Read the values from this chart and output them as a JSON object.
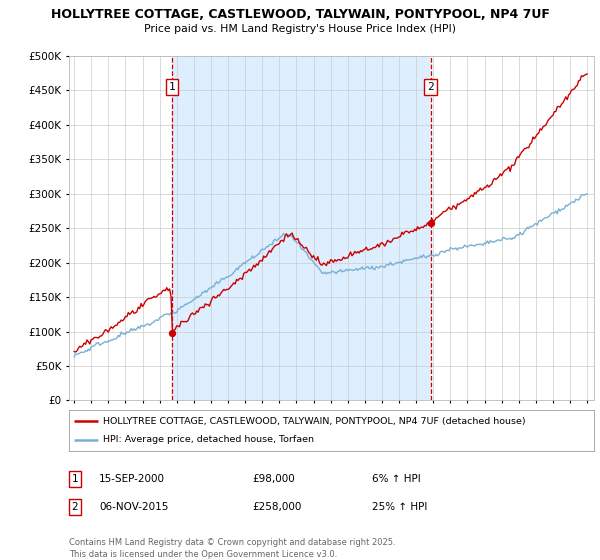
{
  "title": "HOLLYTREE COTTAGE, CASTLEWOOD, TALYWAIN, PONTYPOOL, NP4 7UF",
  "subtitle": "Price paid vs. HM Land Registry's House Price Index (HPI)",
  "legend_line1": "HOLLYTREE COTTAGE, CASTLEWOOD, TALYWAIN, PONTYPOOL, NP4 7UF (detached house)",
  "legend_line2": "HPI: Average price, detached house, Torfaen",
  "transaction1_date": "15-SEP-2000",
  "transaction1_price": "£98,000",
  "transaction1_hpi": "6% ↑ HPI",
  "transaction2_date": "06-NOV-2015",
  "transaction2_price": "£258,000",
  "transaction2_hpi": "25% ↑ HPI",
  "footer": "Contains HM Land Registry data © Crown copyright and database right 2025.\nThis data is licensed under the Open Government Licence v3.0.",
  "line_color_red": "#cc0000",
  "line_color_blue": "#7ab0d4",
  "vline_color": "#cc0000",
  "dot_color_red": "#cc0000",
  "shade_color": "#ddeeff",
  "ylim_min": 0,
  "ylim_max": 500000,
  "background_color": "#ffffff",
  "grid_color": "#cccccc",
  "transaction1_x": 2000.71,
  "transaction2_x": 2015.84,
  "transaction1_price_val": 98000,
  "transaction2_price_val": 258000
}
